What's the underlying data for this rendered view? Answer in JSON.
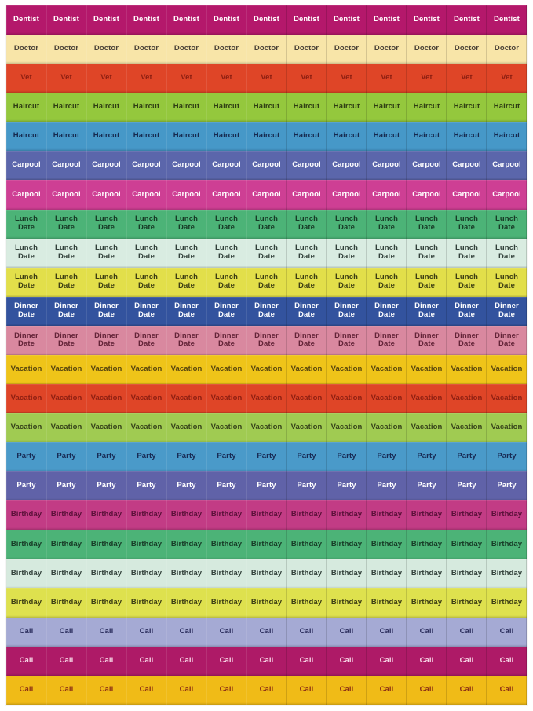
{
  "sheet": {
    "description": "Repositionable reminder label sticker sheet, 24 color rows x 13 columns",
    "columns": 13,
    "rows": [
      {
        "label": "Dentist",
        "bg": "#b4186b",
        "fg": "#ffffff"
      },
      {
        "label": "Doctor",
        "bg": "#f8e5a8",
        "fg": "#4a4238"
      },
      {
        "label": "Vet",
        "bg": "#df4527",
        "fg": "#8c1f12"
      },
      {
        "label": "Haircut",
        "bg": "#94c83d",
        "fg": "#2f3d14"
      },
      {
        "label": "Haircut",
        "bg": "#4698c8",
        "fg": "#16294e"
      },
      {
        "label": "Carpool",
        "bg": "#5b66ab",
        "fg": "#ffffff"
      },
      {
        "label": "Carpool",
        "bg": "#ce3f94",
        "fg": "#ffffff"
      },
      {
        "label": "Lunch Date",
        "bg": "#4cb377",
        "fg": "#173a26"
      },
      {
        "label": "Lunch Date",
        "bg": "#d9ece1",
        "fg": "#32403a"
      },
      {
        "label": "Lunch Date",
        "bg": "#e2df4a",
        "fg": "#3c3d14"
      },
      {
        "label": "Dinner Date",
        "bg": "#33539e",
        "fg": "#ffffff"
      },
      {
        "label": "Dinner Date",
        "bg": "#d9889f",
        "fg": "#632438"
      },
      {
        "label": "Vacation",
        "bg": "#efc419",
        "fg": "#55430f"
      },
      {
        "label": "Vacation",
        "bg": "#df4527",
        "fg": "#8c1f12"
      },
      {
        "label": "Vacation",
        "bg": "#a0cb52",
        "fg": "#35411a"
      },
      {
        "label": "Party",
        "bg": "#4a9ac9",
        "fg": "#182a54"
      },
      {
        "label": "Party",
        "bg": "#6062a8",
        "fg": "#ffffff"
      },
      {
        "label": "Birthday",
        "bg": "#c23c85",
        "fg": "#591038"
      },
      {
        "label": "Birthday",
        "bg": "#4cb377",
        "fg": "#173a26"
      },
      {
        "label": "Birthday",
        "bg": "#d6eade",
        "fg": "#32403a"
      },
      {
        "label": "Birthday",
        "bg": "#dee14e",
        "fg": "#3c3d14"
      },
      {
        "label": "Call",
        "bg": "#a5aad4",
        "fg": "#2c2f5e"
      },
      {
        "label": "Call",
        "bg": "#ae1a67",
        "fg": "#f6d9e6"
      },
      {
        "label": "Call",
        "bg": "#f0bb17",
        "fg": "#8c2f17"
      }
    ]
  }
}
